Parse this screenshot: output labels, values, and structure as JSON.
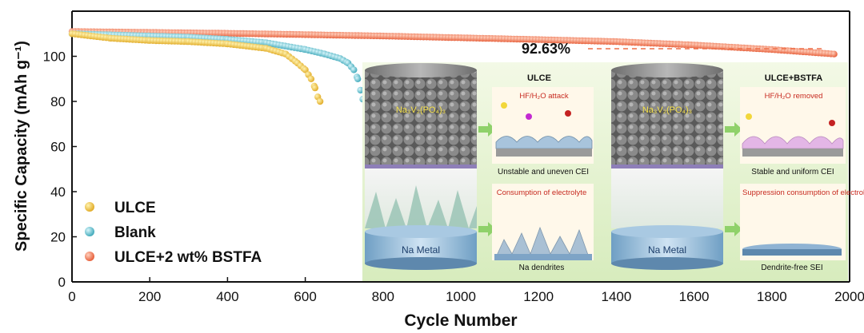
{
  "chart_data": {
    "type": "scatter",
    "xlabel": "Cycle Number",
    "ylabel": "Specific Capacity (mAh g⁻¹)",
    "xlim": [
      0,
      2000
    ],
    "ylim": [
      0,
      120
    ],
    "x_ticks": [
      "0",
      "200",
      "400",
      "600",
      "800",
      "1000",
      "1200",
      "1400",
      "1600",
      "1800",
      "2000"
    ],
    "y_ticks": [
      "0",
      "20",
      "40",
      "60",
      "80",
      "100"
    ],
    "legend_position": "bottom-left",
    "annotation": "92.63%",
    "series": [
      {
        "name": "ULCE",
        "color": "#e8b830",
        "points": [
          [
            0,
            110
          ],
          [
            100,
            108
          ],
          [
            200,
            107
          ],
          [
            300,
            106.5
          ],
          [
            400,
            105.5
          ],
          [
            500,
            103.5
          ],
          [
            550,
            101
          ],
          [
            580,
            97
          ],
          [
            600,
            94
          ],
          [
            615,
            90
          ],
          [
            625,
            86
          ],
          [
            632,
            82
          ],
          [
            638,
            80
          ]
        ]
      },
      {
        "name": "Blank",
        "color": "#4fb8c8",
        "points": [
          [
            0,
            110
          ],
          [
            100,
            109.5
          ],
          [
            200,
            109
          ],
          [
            300,
            108.5
          ],
          [
            400,
            107.5
          ],
          [
            500,
            106
          ],
          [
            600,
            103
          ],
          [
            650,
            101
          ],
          [
            690,
            99
          ],
          [
            710,
            97
          ],
          [
            725,
            94
          ],
          [
            735,
            90
          ],
          [
            742,
            85
          ],
          [
            748,
            81
          ]
        ]
      },
      {
        "name": "ULCE+2 wt% BSTFA",
        "color": "#ee6f48",
        "points": [
          [
            0,
            111
          ],
          [
            200,
            110.6
          ],
          [
            400,
            110.2
          ],
          [
            600,
            109.6
          ],
          [
            800,
            109
          ],
          [
            1000,
            108.2
          ],
          [
            1200,
            107.4
          ],
          [
            1400,
            106.5
          ],
          [
            1600,
            105
          ],
          [
            1800,
            103
          ],
          [
            1960,
            101
          ]
        ]
      }
    ]
  },
  "inset": {
    "left_title": "ULCE",
    "right_title": "ULCE+BSTFA",
    "cathode_formula": "Na₃V₂(PO₄)₃",
    "anode_label": "Na Metal",
    "left_attack": "HF/H₂O attack",
    "left_cei": "Unstable and uneven CEI",
    "left_consumption": "Consumption of electrolyte",
    "left_dendrite": "Na dendrites",
    "right_removed": "HF/H₂O removed",
    "right_cei": "Stable and uniform CEI",
    "right_consumption": "Suppression consumption of electrolyte",
    "right_sei": "Dendrite-free SEI"
  }
}
